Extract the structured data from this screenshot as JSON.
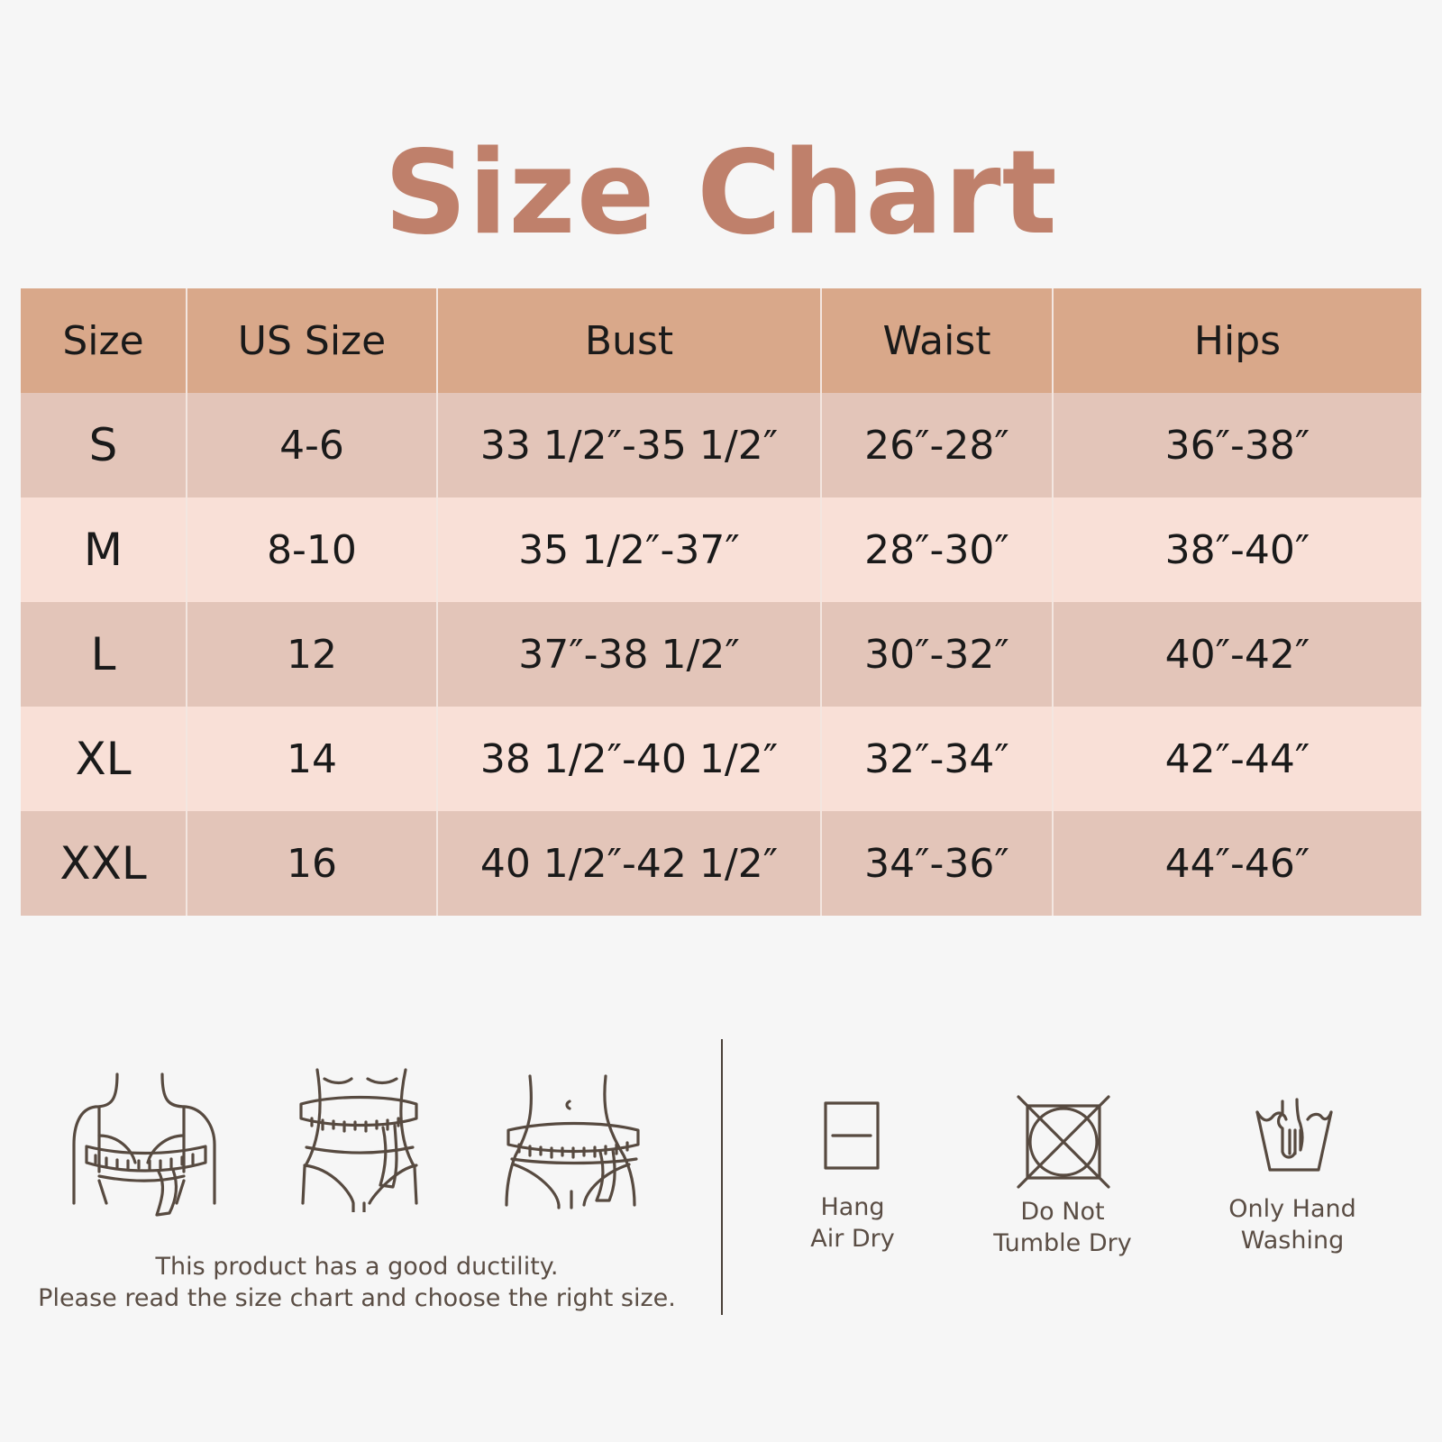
{
  "title": "Size Chart",
  "table": {
    "headers": [
      "Size",
      "US Size",
      "Bust",
      "Waist",
      "Hips"
    ],
    "rows": [
      [
        "S",
        "4-6",
        "33 1/2″-35 1/2″",
        "26″-28″",
        "36″-38″"
      ],
      [
        "M",
        "8-10",
        "35 1/2″-37″",
        "28″-30″",
        "38″-40″"
      ],
      [
        "L",
        "12",
        "37″-38 1/2″",
        "30″-32″",
        "40″-42″"
      ],
      [
        "XL",
        "14",
        "38 1/2″-40 1/2″",
        "32″-34″",
        "42″-44″"
      ],
      [
        "XXL",
        "16",
        "40 1/2″-42 1/2″",
        "34″-36″",
        "44″-46″"
      ]
    ]
  },
  "measure_icons": [
    "bust-measure-icon",
    "waist-measure-icon",
    "hips-measure-icon"
  ],
  "note": {
    "line1": "This product has a good ductility.",
    "line2": "Please read the size chart and choose the right size."
  },
  "care": [
    {
      "icon": "hang-air-dry-icon",
      "line1": "Hang",
      "line2": "Air Dry"
    },
    {
      "icon": "do-not-tumble-dry-icon",
      "line1": "Do Not",
      "line2": "Tumble Dry"
    },
    {
      "icon": "hand-wash-icon",
      "line1": "Only Hand",
      "line2": "Washing"
    }
  ],
  "colors": {
    "title": "#bf806b",
    "header": "#d9a88a",
    "row_dark": "#e3c5b9",
    "row_light": "#f9e0d7",
    "icon": "#574a40"
  }
}
